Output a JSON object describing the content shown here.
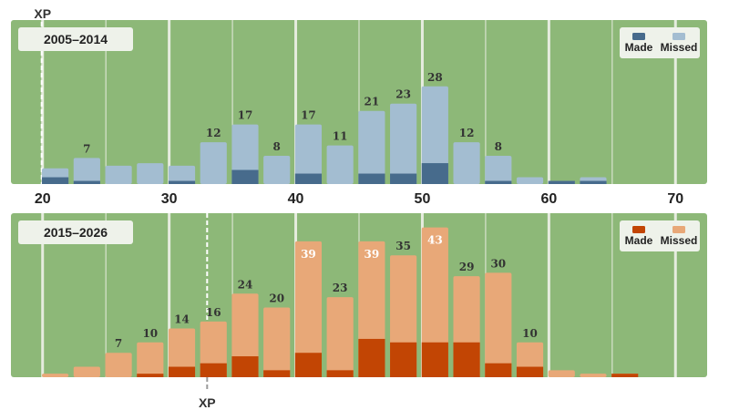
{
  "chart_data": {
    "type": "bar",
    "x_axis": {
      "range": [
        17.5,
        72.5
      ],
      "ticks": [
        20,
        30,
        40,
        50,
        60,
        70
      ]
    },
    "colors": {
      "field": "#8db878",
      "yard_line": "#e6ecdf",
      "panel1_made": "#476b8c",
      "panel1_missed": "#a3bdd1",
      "panel2_made": "#c24504",
      "panel2_missed": "#e8a878"
    },
    "panels": [
      {
        "title": "2005–2014",
        "legend": {
          "made": "Made",
          "missed": "Missed",
          "position": "top-right"
        },
        "xp_label": "XP",
        "xp_label_position": "top",
        "xp_yard": 20,
        "ylim": [
          0,
          30
        ],
        "bins": [
          {
            "x": 21,
            "total": 3,
            "made": 1.3,
            "label": ""
          },
          {
            "x": 23.5,
            "total": 5,
            "made": 0.6,
            "label": "7"
          },
          {
            "x": 26,
            "total": 3.5,
            "made": 0,
            "label": ""
          },
          {
            "x": 28.5,
            "total": 4,
            "made": 0,
            "label": ""
          },
          {
            "x": 31,
            "total": 3.5,
            "made": 0.6,
            "label": ""
          },
          {
            "x": 33.5,
            "total": 8,
            "made": 0,
            "label": "12"
          },
          {
            "x": 36,
            "total": 11.4,
            "made": 2.7,
            "label": "17"
          },
          {
            "x": 38.5,
            "total": 5.4,
            "made": 0,
            "label": "8"
          },
          {
            "x": 41,
            "total": 11.4,
            "made": 2,
            "label": "17"
          },
          {
            "x": 43.5,
            "total": 7.4,
            "made": 0,
            "label": "11"
          },
          {
            "x": 46,
            "total": 14,
            "made": 2,
            "label": "21"
          },
          {
            "x": 48.5,
            "total": 15.4,
            "made": 2,
            "label": "23"
          },
          {
            "x": 51,
            "total": 18.7,
            "made": 4,
            "label": "28"
          },
          {
            "x": 53.5,
            "total": 8,
            "made": 0,
            "label": "12"
          },
          {
            "x": 56,
            "total": 5.4,
            "made": 0.6,
            "label": "8"
          },
          {
            "x": 58.5,
            "total": 1.3,
            "made": 0,
            "label": ""
          },
          {
            "x": 61,
            "total": 0.6,
            "made": 0.6,
            "label": ""
          },
          {
            "x": 63.5,
            "total": 1.3,
            "made": 0.6,
            "label": ""
          }
        ]
      },
      {
        "title": "2015–2026",
        "legend": {
          "made": "Made",
          "missed": "Missed",
          "position": "top-right"
        },
        "xp_label": "XP",
        "xp_label_position": "bottom",
        "xp_yard": 33,
        "ylim": [
          0,
          45
        ],
        "bins": [
          {
            "x": 21,
            "total": 1,
            "made": 0,
            "label": ""
          },
          {
            "x": 23.5,
            "total": 3,
            "made": 0,
            "label": ""
          },
          {
            "x": 26,
            "total": 7,
            "made": 0,
            "label": "7"
          },
          {
            "x": 28.5,
            "total": 10,
            "made": 1,
            "label": "10"
          },
          {
            "x": 31,
            "total": 14,
            "made": 3,
            "label": "14"
          },
          {
            "x": 33.5,
            "total": 16,
            "made": 4,
            "label": "16"
          },
          {
            "x": 36,
            "total": 24,
            "made": 6,
            "label": "24"
          },
          {
            "x": 38.5,
            "total": 20,
            "made": 2,
            "label": "20"
          },
          {
            "x": 41,
            "total": 39,
            "made": 7,
            "label": "39"
          },
          {
            "x": 43.5,
            "total": 23,
            "made": 2,
            "label": "23"
          },
          {
            "x": 46,
            "total": 39,
            "made": 11,
            "label": "39"
          },
          {
            "x": 48.5,
            "total": 35,
            "made": 10,
            "label": "35"
          },
          {
            "x": 51,
            "total": 43,
            "made": 10,
            "label": "43"
          },
          {
            "x": 53.5,
            "total": 29,
            "made": 10,
            "label": "29"
          },
          {
            "x": 56,
            "total": 30,
            "made": 4,
            "label": "30"
          },
          {
            "x": 58.5,
            "total": 10,
            "made": 3,
            "label": "10"
          },
          {
            "x": 61,
            "total": 2,
            "made": 0,
            "label": ""
          },
          {
            "x": 63.5,
            "total": 1,
            "made": 0,
            "label": ""
          },
          {
            "x": 66,
            "total": 1,
            "made": 1,
            "label": ""
          }
        ]
      }
    ]
  }
}
